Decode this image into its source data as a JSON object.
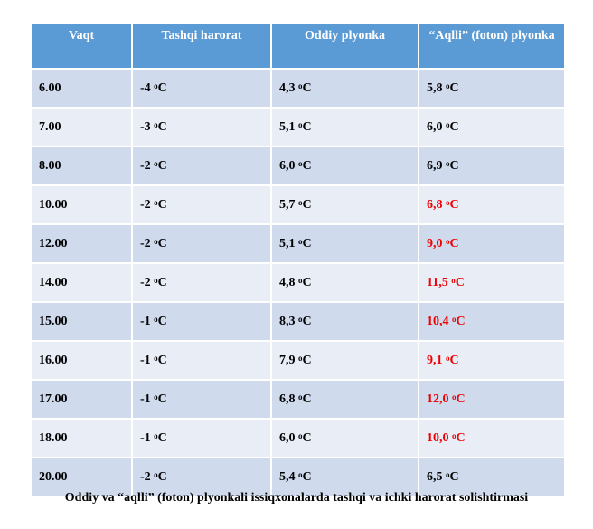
{
  "table": {
    "headers": [
      "Vaqt",
      "Tashqi harorat",
      "Oddiy plyonka",
      "“Aqlli” (foton) plyonka"
    ],
    "unit_degree": "o",
    "unit_letter": "C",
    "rows": [
      {
        "time": "6.00",
        "outside": "-4",
        "regular": "4,3",
        "smart": "5,8",
        "smart_highlight": false
      },
      {
        "time": "7.00",
        "outside": "-3",
        "regular": "5,1",
        "smart": "6,0",
        "smart_highlight": false
      },
      {
        "time": "8.00",
        "outside": "-2",
        "regular": "6,0",
        "smart": "6,9",
        "smart_highlight": false
      },
      {
        "time": "10.00",
        "outside": "-2",
        "regular": "5,7",
        "smart": "6,8",
        "smart_highlight": true
      },
      {
        "time": "12.00",
        "outside": "-2",
        "regular": "5,1",
        "smart": "9,0",
        "smart_highlight": true
      },
      {
        "time": "14.00",
        "outside": "-2",
        "regular": "4,8",
        "smart": "11,5",
        "smart_highlight": true
      },
      {
        "time": "15.00",
        "outside": "-1",
        "regular": "8,3",
        "smart": "10,4",
        "smart_highlight": true
      },
      {
        "time": "16.00",
        "outside": "-1",
        "regular": "7,9",
        "smart": "9,1",
        "smart_highlight": true
      },
      {
        "time": "17.00",
        "outside": "-1",
        "regular": "6,8",
        "smart": "12,0",
        "smart_highlight": true
      },
      {
        "time": "18.00",
        "outside": "-1",
        "regular": "6,0",
        "smart": "10,0",
        "smart_highlight": true
      },
      {
        "time": "20.00",
        "outside": "-2",
        "regular": "5,4",
        "smart": "6,5",
        "smart_highlight": false
      }
    ]
  },
  "colors": {
    "header": "#5b9bd5",
    "row_dark": "#cfdaed",
    "row_light": "#e9edf6",
    "highlight": "#ee0000"
  },
  "caption": "Oddiy va “aqlli” (foton) plyonkali issiqxonalarda tashqi va ichki harorat solishtirmasi"
}
